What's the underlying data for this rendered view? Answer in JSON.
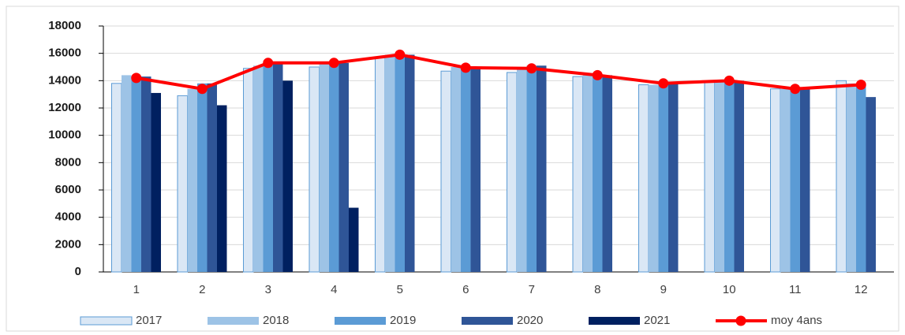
{
  "chart_data": {
    "type": "bar",
    "categories": [
      "1",
      "2",
      "3",
      "4",
      "5",
      "6",
      "7",
      "8",
      "9",
      "10",
      "11",
      "12"
    ],
    "series": [
      {
        "name": "2017",
        "color": "#dae7f5",
        "values": [
          13800,
          12900,
          14900,
          15000,
          15700,
          14700,
          14600,
          14300,
          13700,
          13900,
          13400,
          14000
        ]
      },
      {
        "name": "2018",
        "color": "#9dc3e6",
        "values": [
          14400,
          13400,
          15100,
          15200,
          15900,
          15000,
          14900,
          14400,
          13700,
          13900,
          13400,
          13800
        ]
      },
      {
        "name": "2019",
        "color": "#5b9bd5",
        "values": [
          14300,
          13800,
          15400,
          15300,
          16000,
          15000,
          15100,
          14400,
          13800,
          14000,
          13400,
          13800
        ]
      },
      {
        "name": "2020",
        "color": "#2f5597",
        "values": [
          14300,
          13800,
          15400,
          15300,
          15900,
          14900,
          15100,
          14400,
          13800,
          14000,
          13400,
          12800
        ]
      },
      {
        "name": "2021",
        "color": "#002060",
        "values": [
          13100,
          12200,
          14000,
          4700,
          null,
          null,
          null,
          null,
          null,
          null,
          null,
          null
        ]
      },
      {
        "name": "moy 4ans",
        "type": "line",
        "color": "#ff0000",
        "values": [
          14200,
          13400,
          15300,
          15300,
          15900,
          14950,
          14900,
          14400,
          13800,
          14000,
          13400,
          13700
        ]
      }
    ],
    "ylim": [
      0,
      18000
    ],
    "yticks": [
      0,
      2000,
      4000,
      6000,
      8000,
      10000,
      12000,
      14000,
      16000,
      18000
    ],
    "grid": true,
    "legend": "bottom"
  }
}
